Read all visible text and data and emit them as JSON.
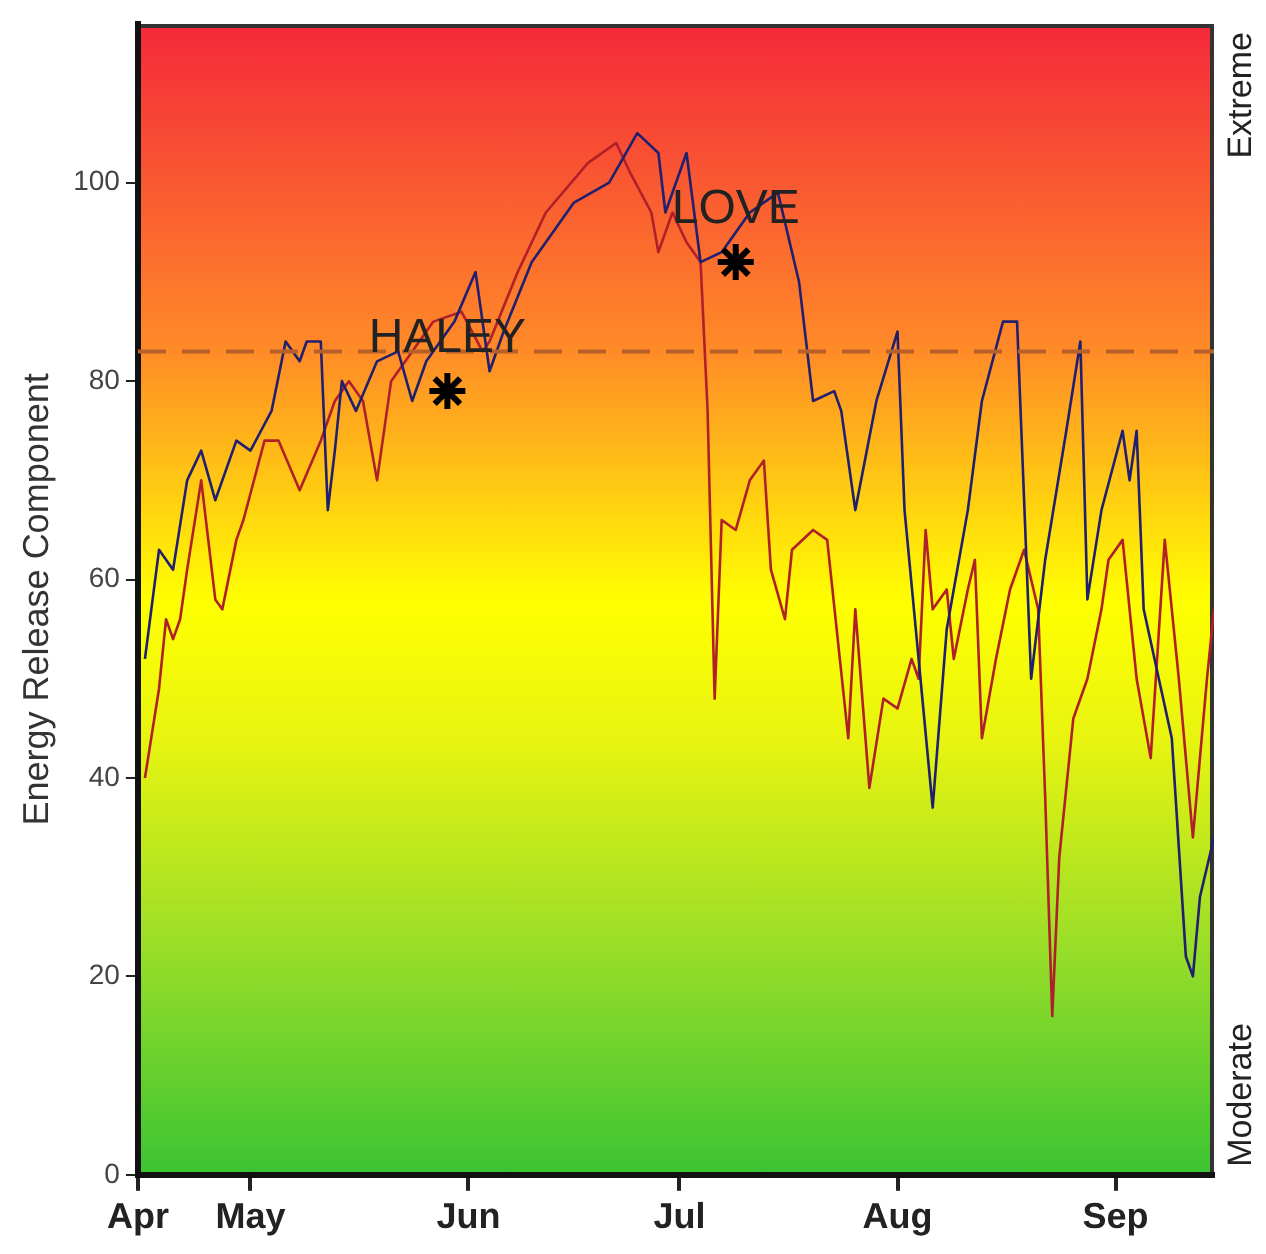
{
  "chart_data": {
    "type": "line",
    "ylabel": "Energy Release Component",
    "xlim": [
      "--04-15",
      "--09-15"
    ],
    "xticks": [
      {
        "value": "--04-15",
        "label": "Apr"
      },
      {
        "value": "--05-01",
        "label": "May"
      },
      {
        "value": "--06-01",
        "label": "Jun"
      },
      {
        "value": "--07-01",
        "label": "Jul"
      },
      {
        "value": "--08-01",
        "label": "Aug"
      },
      {
        "value": "--09-01",
        "label": "Sep"
      }
    ],
    "ylim": [
      0,
      116
    ],
    "yticks": [
      0,
      20,
      40,
      60,
      80,
      100
    ],
    "grid": false,
    "marker": "none",
    "ref_lines": [
      {
        "axis": "y",
        "value": 83,
        "color": "#b8602a",
        "line_style": "dashed"
      }
    ],
    "annotations": [
      {
        "text": "HALEY",
        "x": "--05-29",
        "y": 79
      },
      {
        "text": "LOVE",
        "x": "--07-09",
        "y": 92
      },
      "Extreme",
      "Moderate"
    ],
    "series": [
      {
        "color": "#20206e",
        "x": [
          "--04-16",
          "--04-18",
          "--04-20",
          "--04-22",
          "--04-24",
          "--04-26",
          "--04-29",
          "--05-01",
          "--05-04",
          "--05-06",
          "--05-08",
          "--05-09",
          "--05-11",
          "--05-12",
          "--05-13",
          "--05-14",
          "--05-16",
          "--05-19",
          "--05-22",
          "--05-24",
          "--05-26",
          "--05-30",
          "--06-02",
          "--06-04",
          "--06-06",
          "--06-10",
          "--06-16",
          "--06-21",
          "--06-25",
          "--06-28",
          "--06-29",
          "--07-02",
          "--07-04",
          "--07-07",
          "--07-11",
          "--07-15",
          "--07-18",
          "--07-20",
          "--07-23",
          "--07-24",
          "--07-26",
          "--07-29",
          "--08-01",
          "--08-02",
          "--08-04",
          "--08-06",
          "--08-08",
          "--08-11",
          "--08-13",
          "--08-16",
          "--08-18",
          "--08-20",
          "--08-22",
          "--08-25",
          "--08-27",
          "--08-28",
          "--08-30",
          "--09-02",
          "--09-03",
          "--09-04",
          "--09-05",
          "--09-09",
          "--09-11",
          "--09-12",
          "--09-13",
          "--09-15"
        ],
        "values": [
          52,
          63,
          61,
          70,
          73,
          68,
          74,
          73,
          77,
          84,
          82,
          84,
          84,
          67,
          73,
          80,
          77,
          82,
          83,
          78,
          82,
          86,
          91,
          81,
          85,
          92,
          98,
          100,
          105,
          103,
          97,
          103,
          92,
          93,
          97,
          99,
          90,
          78,
          79,
          77,
          67,
          78,
          85,
          67,
          52,
          37,
          55,
          67,
          78,
          86,
          86,
          50,
          62,
          75,
          84,
          58,
          67,
          75,
          70,
          75,
          57,
          44,
          22,
          20,
          28,
          34
        ]
      },
      {
        "color": "#b0202a",
        "x": [
          "--04-16",
          "--04-18",
          "--04-19",
          "--04-20",
          "--04-21",
          "--04-22",
          "--04-24",
          "--04-26",
          "--04-27",
          "--04-29",
          "--04-30",
          "--05-03",
          "--05-05",
          "--05-08",
          "--05-11",
          "--05-13",
          "--05-15",
          "--05-17",
          "--05-19",
          "--05-21",
          "--05-24",
          "--05-27",
          "--05-31",
          "--06-03",
          "--06-04",
          "--06-08",
          "--06-12",
          "--06-18",
          "--06-22",
          "--06-24",
          "--06-27",
          "--06-28",
          "--06-30",
          "--07-02",
          "--07-04",
          "--07-05",
          "--07-06",
          "--07-07",
          "--07-09",
          "--07-11",
          "--07-13",
          "--07-14",
          "--07-16",
          "--07-17",
          "--07-20",
          "--07-22",
          "--07-25",
          "--07-26",
          "--07-27",
          "--07-28",
          "--07-30",
          "--08-01",
          "--08-03",
          "--08-04",
          "--08-05",
          "--08-06",
          "--08-08",
          "--08-09",
          "--08-11",
          "--08-12",
          "--08-13",
          "--08-15",
          "--08-17",
          "--08-19",
          "--08-21",
          "--08-22",
          "--08-23",
          "--08-24",
          "--08-26",
          "--08-28",
          "--08-30",
          "--08-31",
          "--09-02",
          "--09-03",
          "--09-04",
          "--09-06",
          "--09-08",
          "--09-10",
          "--09-12",
          "--09-14",
          "--09-15"
        ],
        "values": [
          40,
          49,
          56,
          54,
          56,
          61,
          70,
          58,
          57,
          64,
          66,
          74,
          74,
          69,
          74,
          78,
          80,
          78,
          70,
          80,
          83,
          86,
          87,
          83,
          84,
          91,
          97,
          102,
          104,
          101,
          97,
          93,
          97,
          94,
          92,
          77,
          48,
          66,
          65,
          70,
          72,
          61,
          56,
          63,
          65,
          64,
          44,
          57,
          48,
          39,
          48,
          47,
          52,
          50,
          65,
          57,
          59,
          52,
          59,
          62,
          44,
          52,
          59,
          63,
          57,
          38,
          16,
          32,
          46,
          50,
          57,
          62,
          64,
          57,
          50,
          42,
          64,
          50,
          34,
          50,
          57
        ]
      },
      {
        "type": "scatter",
        "color": "#000000",
        "marker": "cross",
        "x": [
          "--05-29",
          "--07-09"
        ],
        "values": [
          79,
          92
        ]
      }
    ]
  }
}
